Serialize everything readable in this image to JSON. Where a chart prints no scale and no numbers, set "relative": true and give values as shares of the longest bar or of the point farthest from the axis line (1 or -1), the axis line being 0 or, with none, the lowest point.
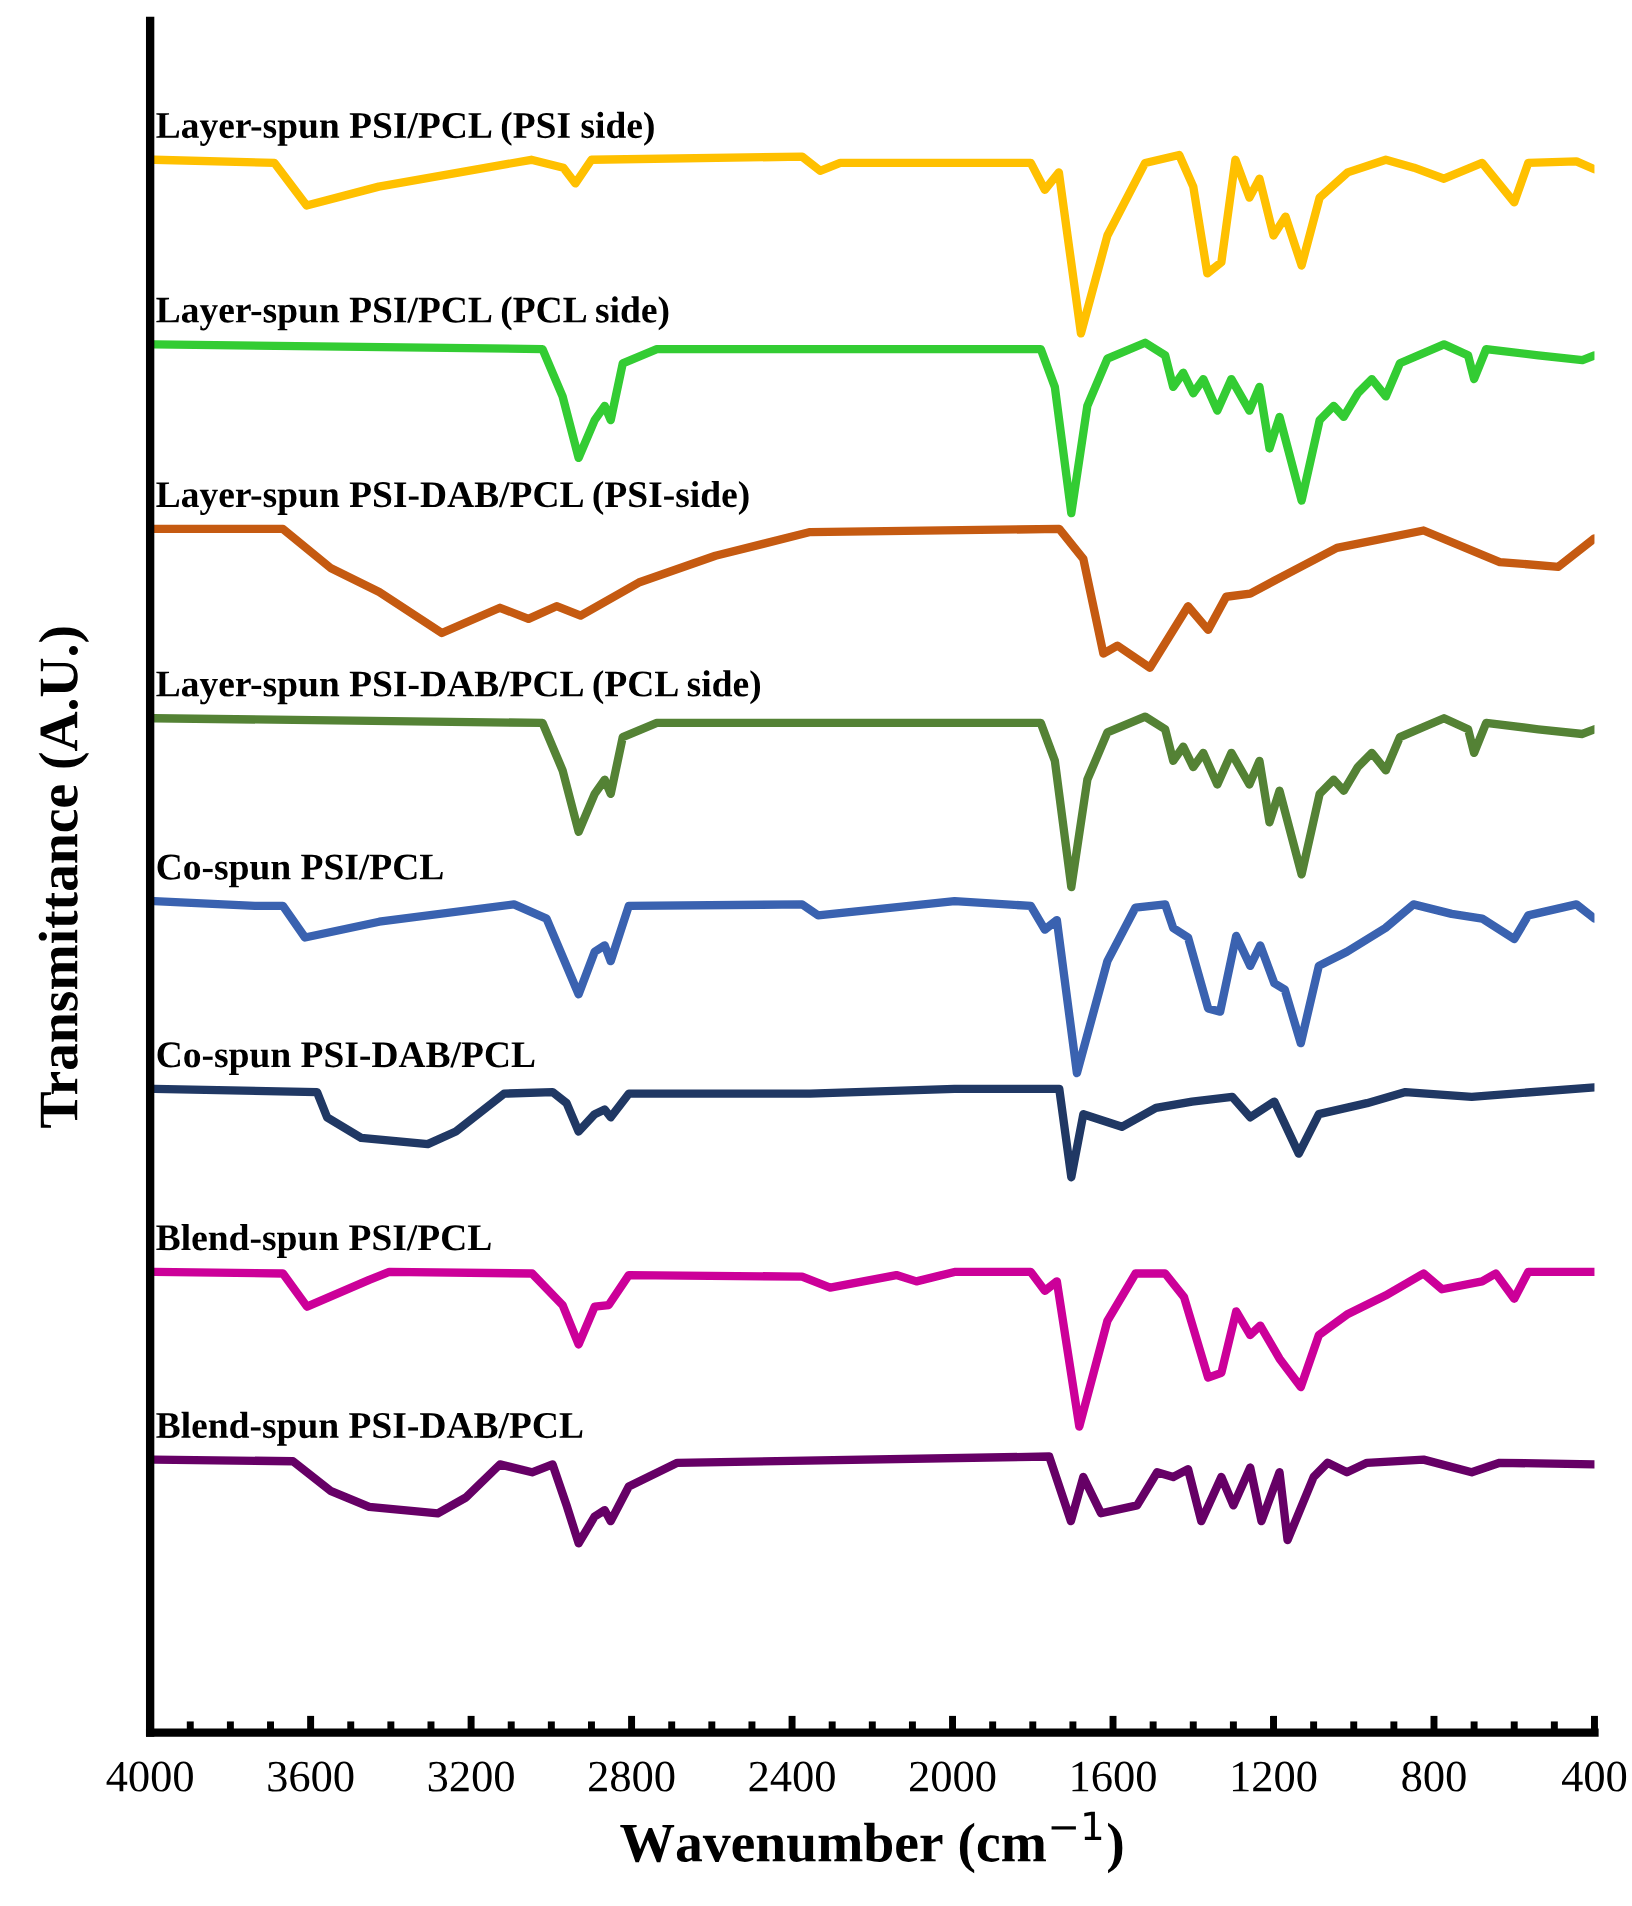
{
  "chart_data": {
    "type": "line",
    "relative": true,
    "xlabel": "Wavenumber (cm$^{−1}$)",
    "ylabel": "Transmittance (A.U.)",
    "xlim": [
      4000,
      400
    ],
    "xticks": [
      4000,
      3600,
      3200,
      2800,
      2400,
      2000,
      1600,
      1200,
      800,
      400
    ],
    "grid": false,
    "legend": false,
    "marker": "none",
    "line_style": "solid",
    "series": [
      {
        "name": "Layer-spun PSI/PCL (PSI side)",
        "color": "#ffc000",
        "x": [
          3990,
          3690,
          3610,
          3430,
          3050,
          2970,
          2940,
          2900,
          2375,
          2330,
          2280,
          1805,
          1770,
          1735,
          1680,
          1614,
          1520,
          1435,
          1400,
          1365,
          1330,
          1295,
          1260,
          1235,
          1200,
          1170,
          1130,
          1085,
          1015,
          920,
          850,
          775,
          680,
          600,
          565,
          445,
          400
        ],
        "values": [
          0.997,
          0.995,
          0.968,
          0.98,
          0.997,
          0.992,
          0.982,
          0.997,
          0.999,
          0.99,
          0.995,
          0.995,
          0.978,
          0.989,
          0.887,
          0.949,
          0.995,
          1.0,
          0.98,
          0.925,
          0.932,
          0.997,
          0.973,
          0.985,
          0.949,
          0.961,
          0.93,
          0.973,
          0.989,
          0.997,
          0.992,
          0.985,
          0.995,
          0.97,
          0.995,
          0.996,
          0.991
        ]
      },
      {
        "name": "Layer-spun PSI/PCL (PCL side)",
        "color": "#33cc33",
        "x": [
          3990,
          3022,
          2972,
          2932,
          2892,
          2867,
          2852,
          2822,
          2737,
          1780,
          1745,
          1704,
          1664,
          1614,
          1520,
          1470,
          1450,
          1425,
          1400,
          1375,
          1340,
          1305,
          1260,
          1235,
          1210,
          1185,
          1130,
          1085,
          1050,
          1025,
          990,
          955,
          920,
          885,
          775,
          715,
          700,
          670,
          540,
          430,
          400
        ],
        "values": [
          0.88,
          0.877,
          0.847,
          0.808,
          0.832,
          0.841,
          0.832,
          0.868,
          0.877,
          0.877,
          0.853,
          0.773,
          0.841,
          0.871,
          0.881,
          0.873,
          0.853,
          0.862,
          0.849,
          0.858,
          0.838,
          0.858,
          0.838,
          0.853,
          0.814,
          0.834,
          0.781,
          0.832,
          0.841,
          0.834,
          0.849,
          0.858,
          0.847,
          0.868,
          0.88,
          0.873,
          0.858,
          0.877,
          0.873,
          0.87,
          0.873
        ]
      },
      {
        "name": "Layer-spun PSI-DAB/PCL (PSI-side)",
        "color": "#c55a11",
        "x": [
          3990,
          3669,
          3549,
          3429,
          3273,
          3128,
          3057,
          2987,
          2927,
          2782,
          2591,
          2355,
          1734,
          1674,
          1624,
          1589,
          1508,
          1413,
          1363,
          1318,
          1258,
          1162,
          1042,
          826,
          636,
          490,
          400
        ],
        "values": [
          0.763,
          0.763,
          0.738,
          0.723,
          0.697,
          0.713,
          0.706,
          0.714,
          0.708,
          0.729,
          0.746,
          0.761,
          0.763,
          0.744,
          0.684,
          0.689,
          0.675,
          0.714,
          0.699,
          0.72,
          0.722,
          0.735,
          0.751,
          0.762,
          0.742,
          0.739,
          0.757
        ]
      },
      {
        "name": "Layer-spun PSI-DAB/PCL (PCL side)",
        "color": "#548235",
        "x": [
          3990,
          3022,
          2972,
          2932,
          2892,
          2867,
          2852,
          2822,
          2737,
          1780,
          1745,
          1704,
          1664,
          1614,
          1520,
          1470,
          1450,
          1425,
          1400,
          1375,
          1340,
          1305,
          1260,
          1235,
          1210,
          1185,
          1130,
          1085,
          1050,
          1025,
          990,
          955,
          920,
          885,
          775,
          715,
          700,
          670,
          540,
          430,
          400
        ],
        "values": [
          0.643,
          0.64,
          0.61,
          0.571,
          0.595,
          0.604,
          0.595,
          0.631,
          0.64,
          0.64,
          0.616,
          0.536,
          0.604,
          0.634,
          0.644,
          0.636,
          0.616,
          0.625,
          0.612,
          0.621,
          0.601,
          0.621,
          0.601,
          0.616,
          0.577,
          0.597,
          0.544,
          0.595,
          0.604,
          0.597,
          0.612,
          0.621,
          0.61,
          0.631,
          0.643,
          0.636,
          0.621,
          0.64,
          0.636,
          0.633,
          0.636
        ]
      },
      {
        "name": "Co-spun PSI/PCL",
        "color": "#3a62b0",
        "x": [
          3990,
          3739,
          3669,
          3614,
          3429,
          3093,
          3012,
          2932,
          2892,
          2867,
          2852,
          2807,
          2375,
          2335,
          1995,
          1805,
          1770,
          1740,
          1690,
          1614,
          1544,
          1470,
          1450,
          1413,
          1363,
          1333,
          1293,
          1258,
          1233,
          1198,
          1172,
          1132,
          1087,
          1017,
          921,
          851,
          756,
          680,
          600,
          565,
          445,
          400
        ],
        "values": [
          0.527,
          0.524,
          0.524,
          0.504,
          0.514,
          0.525,
          0.516,
          0.468,
          0.495,
          0.499,
          0.489,
          0.524,
          0.525,
          0.518,
          0.527,
          0.524,
          0.509,
          0.515,
          0.418,
          0.489,
          0.523,
          0.525,
          0.51,
          0.504,
          0.459,
          0.457,
          0.505,
          0.486,
          0.499,
          0.475,
          0.471,
          0.437,
          0.486,
          0.495,
          0.51,
          0.525,
          0.519,
          0.516,
          0.503,
          0.518,
          0.525,
          0.516
        ]
      },
      {
        "name": "Co-spun PSI-DAB/PCL",
        "color": "#203864",
        "x": [
          3990,
          3584,
          3559,
          3474,
          3308,
          3238,
          3118,
          2997,
          2962,
          2932,
          2892,
          2867,
          2852,
          2807,
          2355,
          1995,
          1734,
          1704,
          1674,
          1578,
          1493,
          1403,
          1303,
          1258,
          1198,
          1137,
          1087,
          967,
          871,
          706,
          400
        ],
        "values": [
          0.408,
          0.406,
          0.39,
          0.377,
          0.373,
          0.381,
          0.405,
          0.406,
          0.399,
          0.381,
          0.392,
          0.395,
          0.39,
          0.405,
          0.405,
          0.408,
          0.408,
          0.352,
          0.392,
          0.384,
          0.396,
          0.4,
          0.403,
          0.39,
          0.4,
          0.367,
          0.392,
          0.399,
          0.406,
          0.403,
          0.409
        ]
      },
      {
        "name": "Blend-spun PSI/PCL",
        "color": "#cc0099",
        "x": [
          3990,
          3669,
          3609,
          3454,
          3404,
          3048,
          2972,
          2932,
          2892,
          2857,
          2807,
          2375,
          2305,
          2140,
          2090,
          1995,
          1805,
          1770,
          1740,
          1684,
          1614,
          1544,
          1470,
          1423,
          1363,
          1330,
          1293,
          1258,
          1233,
          1185,
          1132,
          1087,
          1017,
          921,
          826,
          780,
          680,
          646,
          600,
          565,
          400
        ],
        "values": [
          0.292,
          0.291,
          0.27,
          0.287,
          0.292,
          0.291,
          0.271,
          0.246,
          0.27,
          0.271,
          0.29,
          0.289,
          0.282,
          0.29,
          0.286,
          0.292,
          0.292,
          0.28,
          0.286,
          0.194,
          0.261,
          0.291,
          0.291,
          0.276,
          0.225,
          0.228,
          0.267,
          0.252,
          0.258,
          0.237,
          0.219,
          0.252,
          0.265,
          0.277,
          0.291,
          0.281,
          0.286,
          0.291,
          0.275,
          0.292,
          0.292
        ]
      },
      {
        "name": "Blend-spun PSI-DAB/PCL",
        "color": "#660066",
        "x": [
          3990,
          3644,
          3549,
          3454,
          3283,
          3213,
          3128,
          3048,
          2997,
          2962,
          2932,
          2892,
          2867,
          2852,
          2807,
          2686,
          1759,
          1705,
          1674,
          1630,
          1540,
          1490,
          1450,
          1413,
          1380,
          1330,
          1300,
          1258,
          1230,
          1185,
          1165,
          1100,
          1065,
          1017,
          967,
          826,
          706,
          636,
          400
        ],
        "values": [
          0.173,
          0.172,
          0.153,
          0.143,
          0.139,
          0.149,
          0.17,
          0.165,
          0.17,
          0.144,
          0.12,
          0.137,
          0.141,
          0.134,
          0.156,
          0.171,
          0.175,
          0.134,
          0.162,
          0.139,
          0.144,
          0.165,
          0.162,
          0.167,
          0.134,
          0.162,
          0.144,
          0.168,
          0.134,
          0.165,
          0.122,
          0.162,
          0.171,
          0.165,
          0.171,
          0.173,
          0.165,
          0.171,
          0.17
        ]
      }
    ]
  }
}
